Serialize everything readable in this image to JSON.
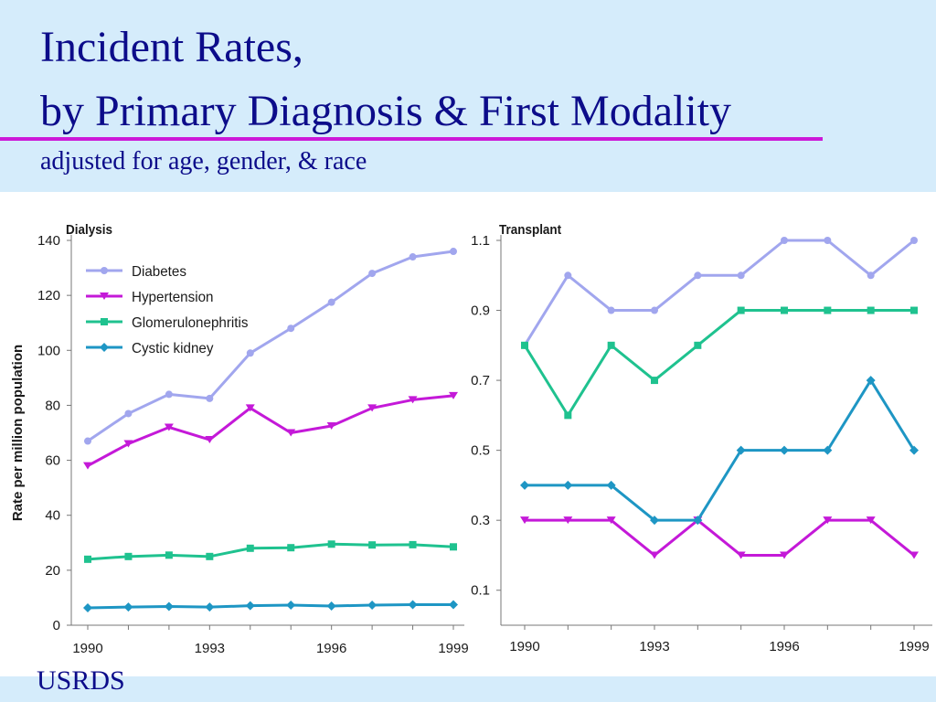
{
  "slide": {
    "title_line1": "Incident Rates,",
    "title_line2": "by Primary Diagnosis & First Modality",
    "subtitle": "adjusted for age, gender, & race",
    "footer": "USRDS",
    "rule_color": "#cc19d8",
    "title_color": "#0c0c8a"
  },
  "chart_data": [
    {
      "type": "line",
      "title": "Dialysis",
      "ylabel": "Rate per million population",
      "xlabel": "",
      "x": [
        1990,
        1991,
        1992,
        1993,
        1994,
        1995,
        1996,
        1997,
        1998,
        1999
      ],
      "xticks": [
        "1990",
        "1993",
        "1996",
        "1999"
      ],
      "ylim": [
        0,
        140
      ],
      "yticks": [
        "0",
        "20",
        "40",
        "60",
        "80",
        "100",
        "120",
        "140"
      ],
      "grid": false,
      "legend": "top-left",
      "series": [
        {
          "name": "Diabetes",
          "color": "#a1a6ee",
          "marker": "circle",
          "values": [
            67,
            77,
            84,
            82.5,
            99,
            108,
            117.5,
            128,
            134,
            136
          ]
        },
        {
          "name": "Hypertension",
          "color": "#c419d8",
          "marker": "triangle-down",
          "values": [
            58,
            66,
            72,
            67.5,
            79,
            70,
            72.5,
            79,
            82,
            83.5
          ]
        },
        {
          "name": "Glomerulonephritis",
          "color": "#1fc28f",
          "marker": "square",
          "values": [
            24,
            25,
            25.5,
            25,
            28,
            28.2,
            29.5,
            29.2,
            29.3,
            28.5
          ]
        },
        {
          "name": "Cystic kidney",
          "color": "#1e96c4",
          "marker": "diamond",
          "values": [
            6.3,
            6.6,
            6.8,
            6.6,
            7.1,
            7.3,
            7.0,
            7.3,
            7.5,
            7.5
          ]
        }
      ]
    },
    {
      "type": "line",
      "title": "Transplant",
      "ylabel": "",
      "xlabel": "",
      "x": [
        1990,
        1991,
        1992,
        1993,
        1994,
        1995,
        1996,
        1997,
        1998,
        1999
      ],
      "xticks": [
        "1990",
        "1993",
        "1996",
        "1999"
      ],
      "ylim": [
        0,
        1.1
      ],
      "yticks": [
        "0.1",
        "0.3",
        "0.5",
        "0.7",
        "0.9",
        "1.1"
      ],
      "grid": false,
      "series": [
        {
          "name": "Diabetes",
          "color": "#a1a6ee",
          "marker": "circle",
          "values": [
            0.8,
            1.0,
            0.9,
            0.9,
            1.0,
            1.0,
            1.1,
            1.1,
            1.0,
            1.1
          ]
        },
        {
          "name": "Hypertension",
          "color": "#c419d8",
          "marker": "triangle-down",
          "values": [
            0.3,
            0.3,
            0.3,
            0.2,
            0.3,
            0.2,
            0.2,
            0.3,
            0.3,
            0.2
          ]
        },
        {
          "name": "Glomerulonephritis",
          "color": "#1fc28f",
          "marker": "square",
          "values": [
            0.8,
            0.6,
            0.8,
            0.7,
            0.8,
            0.9,
            0.9,
            0.9,
            0.9,
            0.9
          ]
        },
        {
          "name": "Cystic kidney",
          "color": "#1e96c4",
          "marker": "diamond",
          "values": [
            0.4,
            0.4,
            0.4,
            0.3,
            0.3,
            0.5,
            0.5,
            0.5,
            0.7,
            0.5
          ]
        }
      ]
    }
  ]
}
